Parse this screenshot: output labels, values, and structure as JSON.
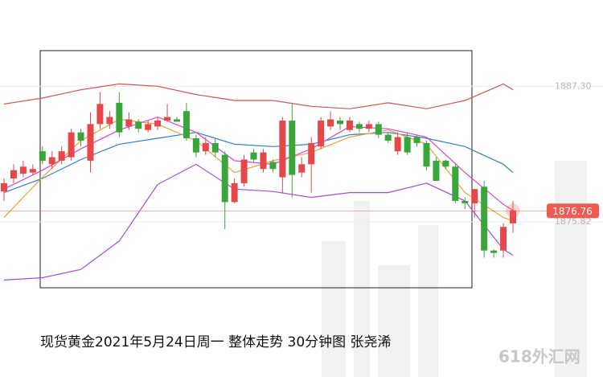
{
  "chart_data": {
    "type": "candlestick",
    "caption": "现货黄金2021年5月24日周一 整体走势  30分钟图 张尧浠",
    "watermark": "618外汇网",
    "candles": {
      "open": [
        1878.4,
        1879.5,
        1879.9,
        1880.0,
        1881.8,
        1880.7,
        1881.0,
        1881.3,
        1883.4,
        1881.0,
        1884.1,
        1884.1,
        1885.9,
        1883.9,
        1884.3,
        1883.6,
        1883.9,
        1884.4,
        1884.5,
        1885.2,
        1882.9,
        1881.8,
        1882.5,
        1881.5,
        1877.5,
        1879.1,
        1881.7,
        1880.3,
        1880.9,
        1879.6,
        1884.4,
        1880.0,
        1880.7,
        1882.2,
        1883.9,
        1884.4,
        1883.6,
        1884.1,
        1883.7,
        1884.1,
        1883.2,
        1881.8,
        1883.0,
        1883.0,
        1882.5,
        1881.0,
        1881.0,
        1880.5,
        1877.6,
        1877.4,
        1878.8,
        1873.4,
        1873.4,
        1875.7
      ],
      "high": [
        1879.5,
        1880.7,
        1881.0,
        1880.7,
        1882.2,
        1881.8,
        1882.2,
        1883.7,
        1883.7,
        1885.1,
        1886.8,
        1885.2,
        1886.8,
        1885.1,
        1884.5,
        1884.4,
        1884.7,
        1885.8,
        1884.7,
        1885.9,
        1883.2,
        1883.0,
        1882.9,
        1881.8,
        1879.5,
        1881.5,
        1882.0,
        1882.0,
        1881.1,
        1884.7,
        1885.9,
        1881.3,
        1883.0,
        1884.7,
        1885.2,
        1884.7,
        1884.7,
        1884.3,
        1884.4,
        1884.3,
        1883.4,
        1883.4,
        1883.4,
        1883.2,
        1882.7,
        1881.3,
        1881.1,
        1880.7,
        1877.9,
        1878.6,
        1879.3,
        1873.5,
        1875.7,
        1877.6
      ],
      "low": [
        1877.6,
        1879.1,
        1879.6,
        1879.8,
        1880.7,
        1880.3,
        1880.7,
        1881.0,
        1882.2,
        1880.0,
        1883.7,
        1883.7,
        1883.0,
        1883.6,
        1883.4,
        1883.4,
        1883.6,
        1884.3,
        1884.3,
        1882.7,
        1881.3,
        1881.5,
        1881.3,
        1875.2,
        1877.4,
        1878.8,
        1880.9,
        1880.0,
        1880.0,
        1878.3,
        1877.9,
        1879.6,
        1878.3,
        1882.0,
        1883.6,
        1883.6,
        1883.4,
        1883.4,
        1883.4,
        1882.9,
        1882.5,
        1881.5,
        1881.5,
        1882.2,
        1880.2,
        1879.3,
        1880.3,
        1877.4,
        1876.9,
        1876.2,
        1872.8,
        1872.8,
        1872.8,
        1874.9
      ],
      "close": [
        1879.1,
        1880.2,
        1880.5,
        1880.3,
        1881.0,
        1881.3,
        1881.8,
        1883.4,
        1882.7,
        1884.1,
        1885.8,
        1884.7,
        1883.4,
        1884.5,
        1883.7,
        1884.1,
        1884.4,
        1884.7,
        1884.3,
        1882.9,
        1881.7,
        1882.5,
        1881.7,
        1877.5,
        1879.1,
        1881.1,
        1881.1,
        1881.7,
        1880.3,
        1884.4,
        1879.8,
        1880.7,
        1882.5,
        1884.4,
        1884.5,
        1884.1,
        1884.4,
        1883.7,
        1884.1,
        1883.2,
        1882.7,
        1883.0,
        1881.7,
        1882.5,
        1880.5,
        1879.3,
        1880.5,
        1877.6,
        1877.4,
        1878.6,
        1873.4,
        1873.2,
        1875.4,
        1876.8
      ]
    },
    "up_color": "#e8474a",
    "down_color": "#3aa53a",
    "lines": {
      "x": [
        0,
        4,
        8,
        12,
        16,
        20,
        24,
        28,
        32,
        36,
        40,
        44,
        48,
        52,
        53
      ],
      "series": [
        {
          "color": "#d4554a",
          "values": [
            1885.8,
            1886.3,
            1887.0,
            1887.5,
            1887.3,
            1886.6,
            1886.1,
            1886.1,
            1885.6,
            1885.4,
            1885.9,
            1885.4,
            1886.1,
            1887.5,
            1887.0
          ]
        },
        {
          "color": "#2f7ed8",
          "values": [
            1878.3,
            1879.5,
            1881.1,
            1882.4,
            1882.9,
            1883.4,
            1882.4,
            1882.2,
            1882.4,
            1883.2,
            1883.4,
            1882.9,
            1882.2,
            1880.7,
            1880.0
          ]
        },
        {
          "color": "#a64be0",
          "values": [
            1870.9,
            1871.1,
            1871.8,
            1874.2,
            1879.0,
            1880.7,
            1878.6,
            1878.4,
            1877.9,
            1878.3,
            1878.3,
            1879.1,
            1877.6,
            1873.5,
            1873.0
          ]
        },
        {
          "color": "#f0a030",
          "values": [
            1876.2,
            1879.6,
            1882.7,
            1884.5,
            1884.1,
            1882.7,
            1880.0,
            1881.0,
            1881.7,
            1883.0,
            1883.6,
            1882.4,
            1878.3,
            1876.2,
            1875.9
          ]
        },
        {
          "color": "#e040d8",
          "values": [
            1878.6,
            1880.2,
            1882.0,
            1883.6,
            1884.7,
            1883.4,
            1881.0,
            1880.7,
            1882.0,
            1883.9,
            1883.7,
            1883.0,
            1880.0,
            1877.3,
            1876.8
          ]
        }
      ]
    },
    "ylim": [
      1862.7,
      1894.6
    ],
    "yticks": [
      {
        "value": 1887.3,
        "label": "1887.30"
      },
      {
        "value": 1875.82,
        "label": "1875.82"
      }
    ],
    "last_price": {
      "value": 1876.76,
      "label": "1876.76"
    },
    "last_price_color": "#f05a50"
  }
}
